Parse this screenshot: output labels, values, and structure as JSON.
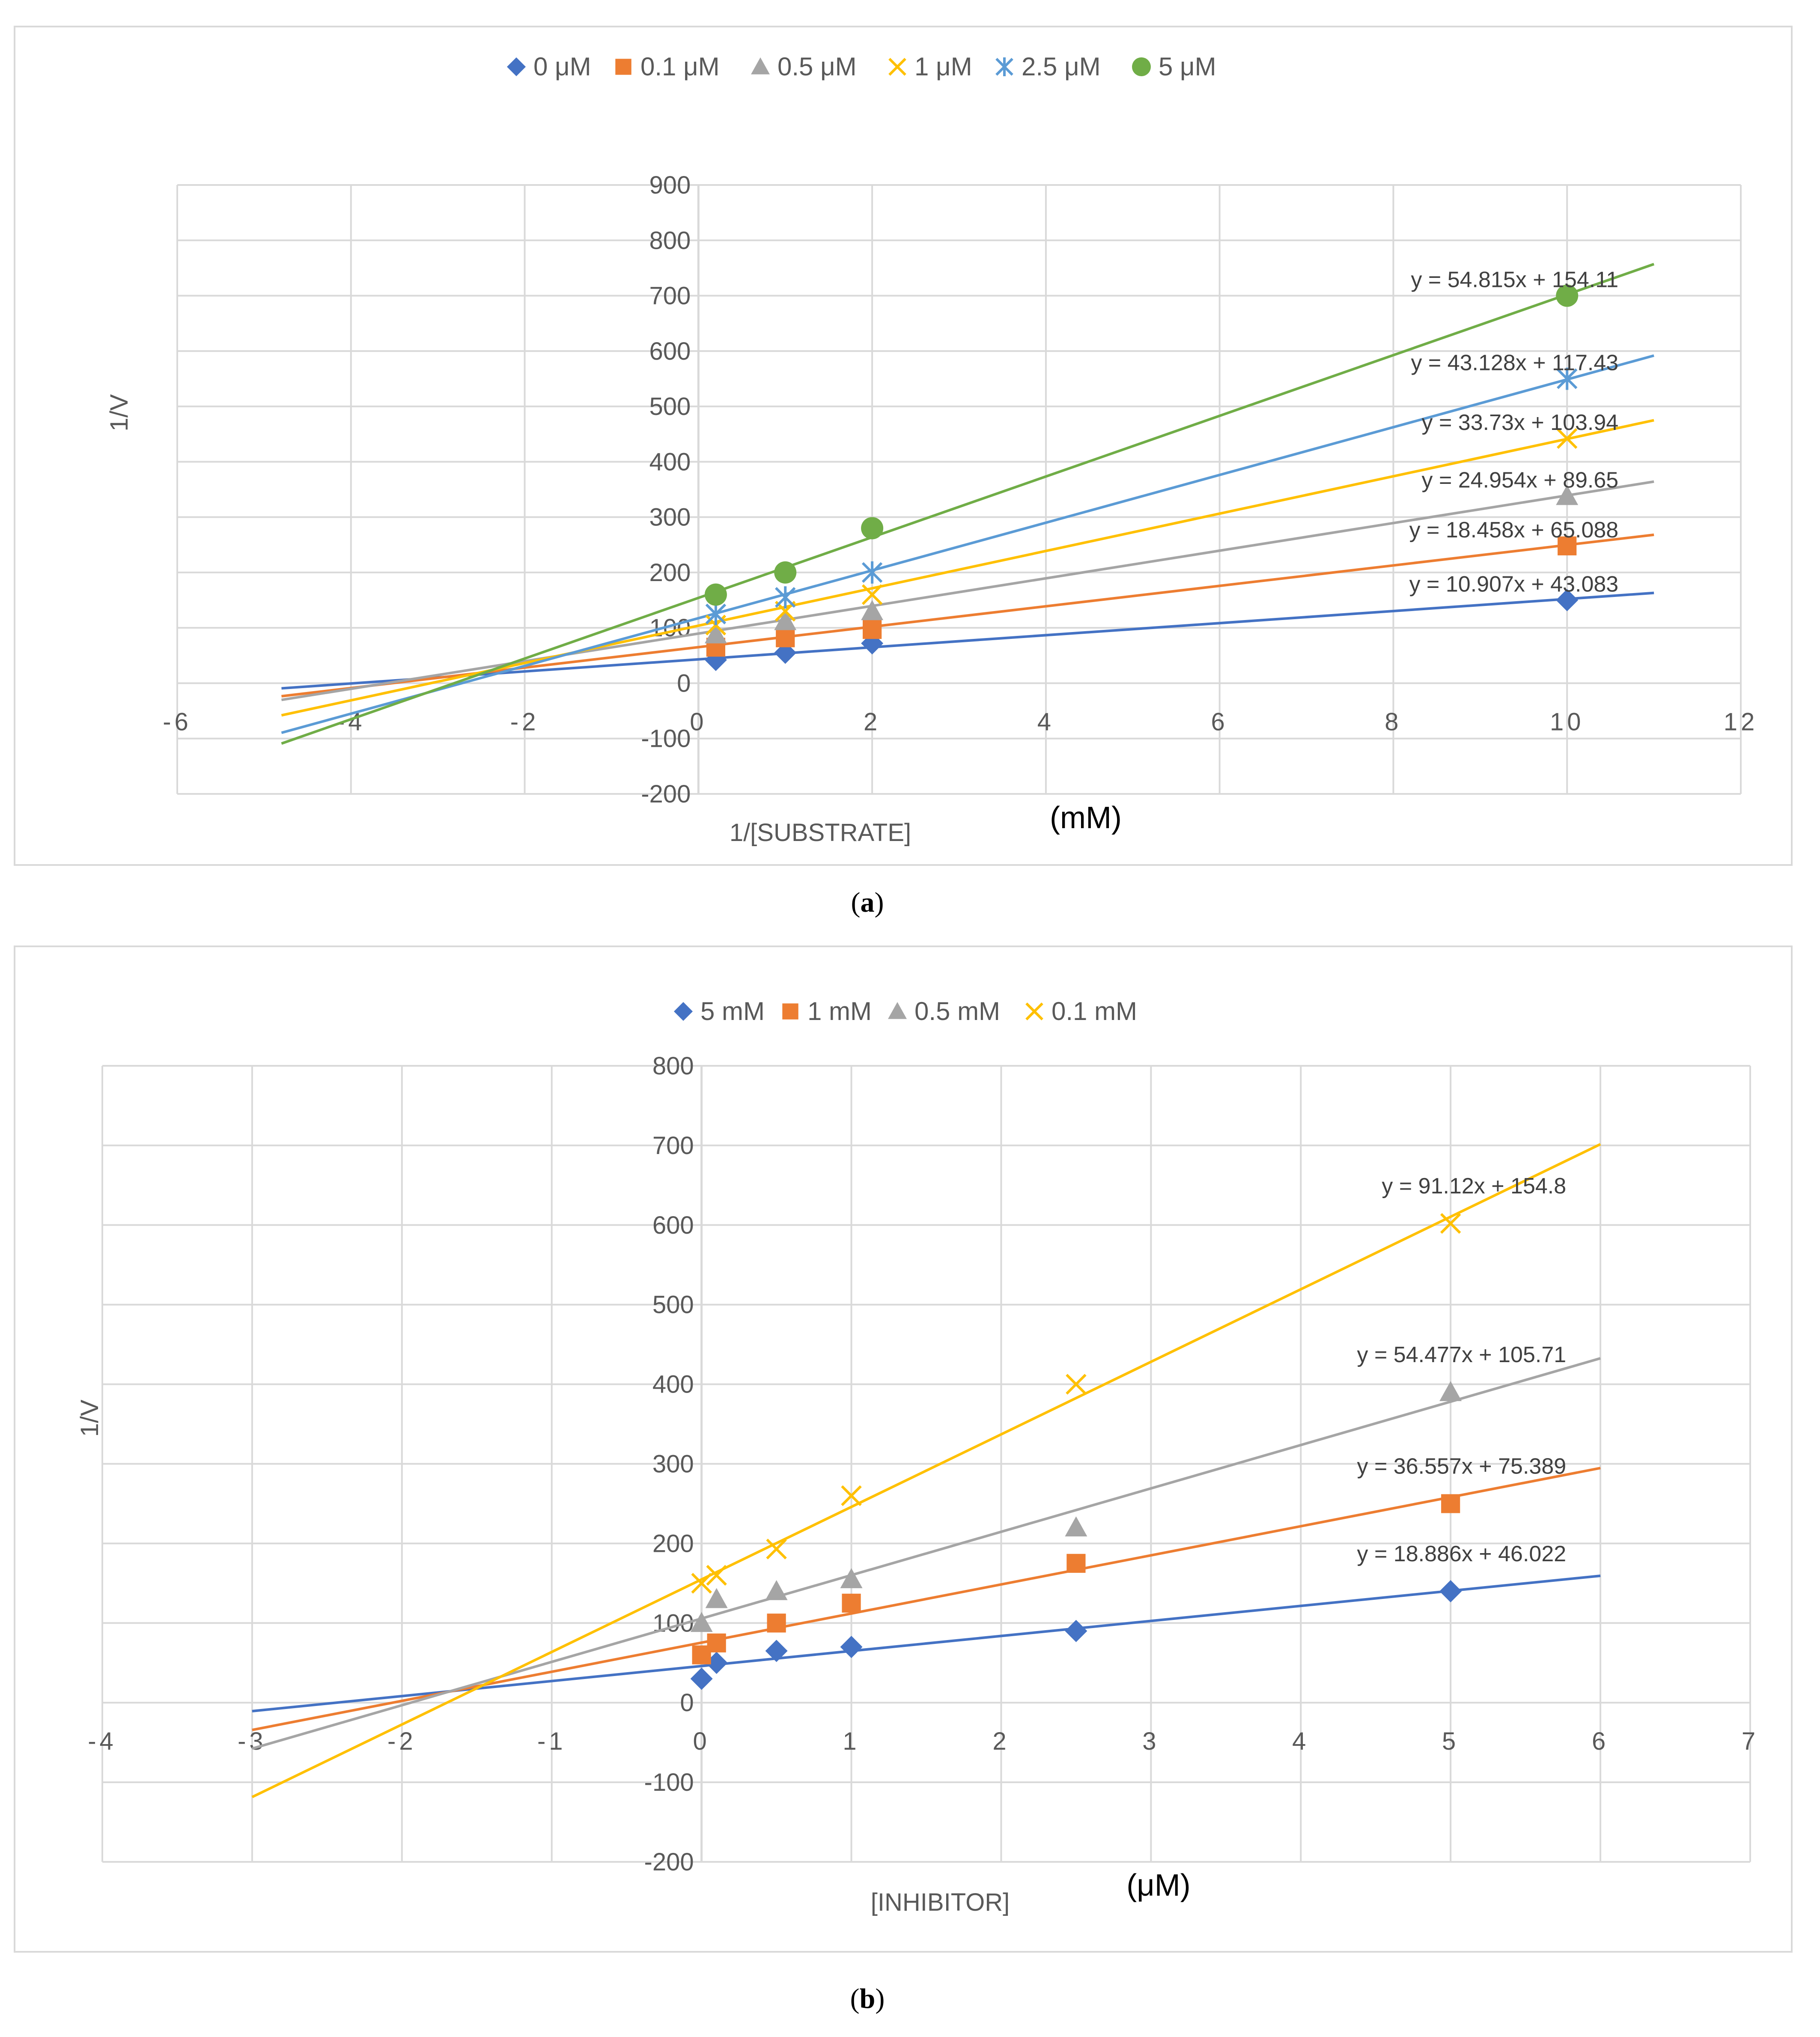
{
  "figure": {
    "caption_a": "a",
    "caption_b": "b"
  },
  "chart_data": [
    {
      "id": "a",
      "type": "scatter",
      "title": "",
      "xlabel": "1/[SUBSTRATE]",
      "xunit": "(mM)",
      "ylabel": "1/V",
      "xlim": [
        -6,
        12
      ],
      "ylim": [
        -200,
        900
      ],
      "xticks": [
        -6,
        -4,
        -2,
        0,
        2,
        4,
        6,
        8,
        10,
        12
      ],
      "yticks": [
        -200,
        -100,
        0,
        100,
        200,
        300,
        400,
        500,
        600,
        700,
        800,
        900
      ],
      "grid": true,
      "legend": "top",
      "trend_x_range": [
        -4.8,
        11
      ],
      "series": [
        {
          "name": "0 μM",
          "color": "#4472c4",
          "marker": "diamond",
          "x": [
            0.2,
            1,
            2,
            10
          ],
          "y": [
            42,
            55,
            72,
            150
          ],
          "slope": 10.907,
          "intercept": 43.083,
          "equation": "y = 10.907x + 43.083"
        },
        {
          "name": "0.1 μM",
          "color": "#ed7d31",
          "marker": "square",
          "x": [
            0.2,
            1,
            2,
            10
          ],
          "y": [
            65,
            82,
            97,
            248
          ],
          "slope": 18.458,
          "intercept": 65.088,
          "equation": "y = 18.458x + 65.088"
        },
        {
          "name": "0.5 μM",
          "color": "#a5a5a5",
          "marker": "triangle",
          "x": [
            0.2,
            1,
            2,
            10
          ],
          "y": [
            88,
            112,
            130,
            338
          ],
          "slope": 24.954,
          "intercept": 89.65,
          "equation": "y = 24.954x + 89.65"
        },
        {
          "name": "1 μM",
          "color": "#ffc000",
          "marker": "x",
          "x": [
            0.2,
            1,
            2,
            10
          ],
          "y": [
            105,
            130,
            160,
            442
          ],
          "slope": 33.73,
          "intercept": 103.94,
          "equation": "y = 33.73x + 103.94"
        },
        {
          "name": "2.5 μM",
          "color": "#5b9bd5",
          "marker": "star",
          "x": [
            0.2,
            1,
            2,
            10
          ],
          "y": [
            125,
            155,
            200,
            550
          ],
          "slope": 43.128,
          "intercept": 117.43,
          "equation": "y = 43.128x + 117.43"
        },
        {
          "name": "5 μM",
          "color": "#70ad47",
          "marker": "circle",
          "x": [
            0.2,
            1,
            2,
            10
          ],
          "y": [
            160,
            200,
            280,
            700
          ],
          "slope": 54.815,
          "intercept": 154.11,
          "equation": "y = 54.815x + 154.11"
        }
      ]
    },
    {
      "id": "b",
      "type": "scatter",
      "title": "",
      "xlabel": "[INHIBITOR]",
      "xunit": "(μM)",
      "ylabel": "1/V",
      "xlim": [
        -4,
        7
      ],
      "ylim": [
        -200,
        800
      ],
      "xticks": [
        -4,
        -3,
        -2,
        -1,
        0,
        1,
        2,
        3,
        4,
        5,
        6,
        7
      ],
      "yticks": [
        -200,
        -100,
        0,
        100,
        200,
        300,
        400,
        500,
        600,
        700,
        800
      ],
      "grid": true,
      "legend": "top",
      "trend_x_range": [
        -3,
        6
      ],
      "series": [
        {
          "name": "5 mM",
          "color": "#4472c4",
          "marker": "diamond",
          "x": [
            0,
            0.1,
            0.5,
            1,
            2.5,
            5
          ],
          "y": [
            30,
            50,
            65,
            70,
            90,
            140
          ],
          "slope": 18.886,
          "intercept": 46.022,
          "equation": "y = 18.886x + 46.022"
        },
        {
          "name": "1 mM",
          "color": "#ed7d31",
          "marker": "square",
          "x": [
            0,
            0.1,
            0.5,
            1,
            2.5,
            5
          ],
          "y": [
            60,
            75,
            100,
            125,
            175,
            250
          ],
          "slope": 36.557,
          "intercept": 75.389,
          "equation": "y = 36.557x + 75.389"
        },
        {
          "name": "0.5 mM",
          "color": "#a5a5a5",
          "marker": "triangle",
          "x": [
            0,
            0.1,
            0.5,
            1,
            2.5,
            5
          ],
          "y": [
            100,
            130,
            140,
            155,
            220,
            390
          ],
          "slope": 54.477,
          "intercept": 105.71,
          "equation": "y = 54.477x + 105.71"
        },
        {
          "name": "0.1 mM",
          "color": "#ffc000",
          "marker": "x",
          "x": [
            0,
            0.1,
            0.5,
            1,
            2.5,
            5
          ],
          "y": [
            150,
            160,
            193,
            260,
            400,
            602
          ],
          "slope": 91.12,
          "intercept": 154.8,
          "equation": "y = 91.12x + 154.8"
        }
      ]
    }
  ]
}
